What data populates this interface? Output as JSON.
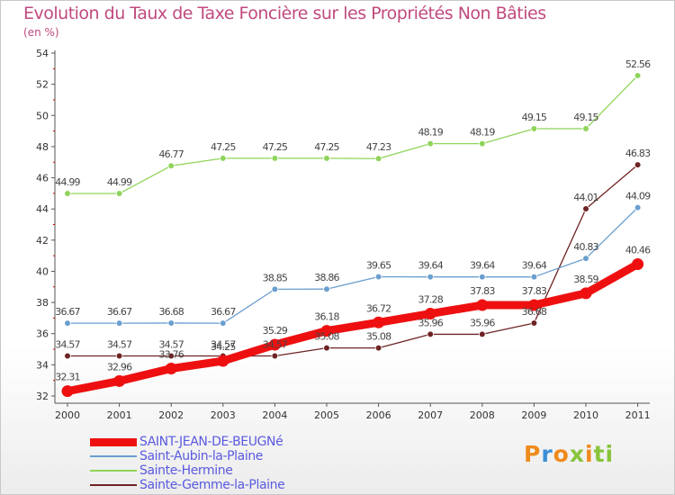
{
  "title": "Evolution du Taux de Taxe Foncière sur les Propriétés Non Bâties",
  "subtitle": "(en %)",
  "logo_text": "Proxiti",
  "chart_data": {
    "type": "line",
    "x": [
      "2000",
      "2001",
      "2002",
      "2003",
      "2004",
      "2005",
      "2006",
      "2007",
      "2008",
      "2009",
      "2010",
      "2011"
    ],
    "ylim": [
      32,
      54
    ],
    "yticks": [
      "32",
      "34",
      "36",
      "38",
      "40",
      "42",
      "44",
      "46",
      "48",
      "50",
      "52",
      "54"
    ],
    "grid": false,
    "legend_position": "bottom-left",
    "series": [
      {
        "name": "SAINT-JEAN-DE-BEUGNé",
        "color": "#ee1010",
        "values": [
          32.31,
          32.96,
          33.76,
          34.25,
          35.29,
          36.18,
          36.72,
          37.28,
          37.83,
          37.83,
          38.59,
          40.46
        ],
        "labels": [
          "32.31",
          "32.96",
          "33.76",
          "34.25",
          "35.29",
          "36.18",
          "36.72",
          "37.28",
          "37.83",
          "37.83",
          "38.59",
          "40.46"
        ]
      },
      {
        "name": "Saint-Aubin-la-Plaine",
        "color": "#6a9fcf",
        "values": [
          36.67,
          36.67,
          36.68,
          36.67,
          38.85,
          38.86,
          39.65,
          39.64,
          39.64,
          39.64,
          40.83,
          44.09
        ],
        "labels": [
          "36.67",
          "36.67",
          "36.68",
          "36.67",
          "38.85",
          "38.86",
          "39.65",
          "39.64",
          "39.64",
          "39.64",
          "40.83",
          "44.09"
        ]
      },
      {
        "name": "Sainte-Hermine",
        "color": "#8fd45a",
        "values": [
          44.99,
          44.99,
          46.77,
          47.25,
          47.25,
          47.25,
          47.23,
          48.19,
          48.19,
          49.15,
          49.15,
          52.56
        ],
        "labels": [
          "44.99",
          "44.99",
          "46.77",
          "47.25",
          "47.25",
          "47.25",
          "47.23",
          "48.19",
          "48.19",
          "49.15",
          "49.15",
          "52.56"
        ]
      },
      {
        "name": "Sainte-Gemme-la-Plaine",
        "color": "#6e2424",
        "values": [
          34.57,
          34.57,
          34.57,
          34.57,
          34.57,
          35.08,
          35.08,
          35.96,
          35.96,
          36.68,
          44.01,
          46.83
        ],
        "labels": [
          "34.57",
          "34.57",
          "34.57",
          "34.57",
          "34.57",
          "35.08",
          "35.08",
          "35.96",
          "35.96",
          "36.68",
          "44.01",
          "46.83"
        ]
      }
    ]
  }
}
